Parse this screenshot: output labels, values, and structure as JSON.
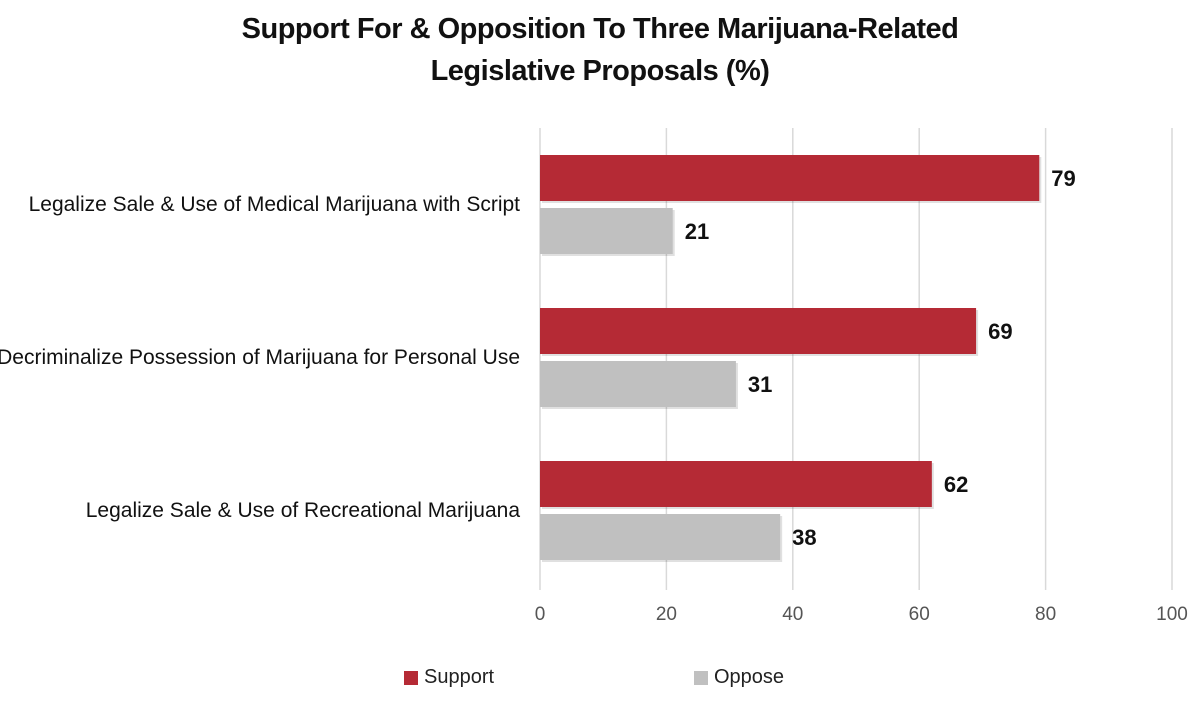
{
  "title_line1": "Support For & Opposition To Three Marijuana-Related",
  "title_line2": "Legislative Proposals (%)",
  "colors": {
    "support": "#b52a35",
    "oppose": "#c0c0c0",
    "grid": "#d9d9d9",
    "axis_text": "#555555"
  },
  "chart_data": {
    "type": "bar",
    "orientation": "horizontal",
    "title": "Support For & Opposition To Three Marijuana-Related Legislative Proposals (%)",
    "categories": [
      "Legalize Sale & Use of Medical Marijuana with Script",
      "Decriminalize Possession of Marijuana for Personal Use",
      "Legalize Sale & Use of Recreational Marijuana"
    ],
    "series": [
      {
        "name": "Support",
        "values": [
          79,
          69,
          62
        ]
      },
      {
        "name": "Oppose",
        "values": [
          21,
          31,
          38
        ]
      }
    ],
    "xlim": [
      0,
      100
    ],
    "xticks": [
      "0",
      "20",
      "40",
      "60",
      "80",
      "100"
    ],
    "grid": true,
    "legend_position": "bottom",
    "data_labels": true
  }
}
